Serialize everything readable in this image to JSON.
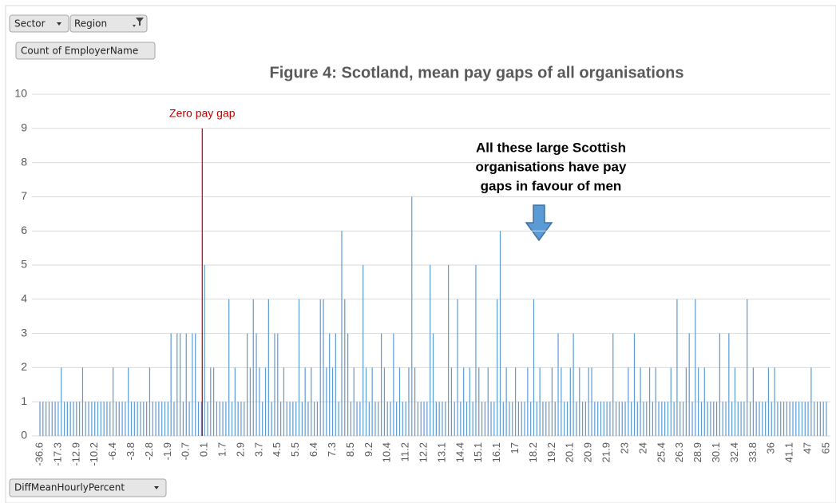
{
  "controls": {
    "filters": [
      "Sector",
      "Region"
    ],
    "values_field": "Count of EmployerName",
    "axis_field": "DiffMeanHourlyPercent"
  },
  "chart_data": {
    "type": "bar",
    "title": "Figure 4: Scotland, mean pay gaps of all organisations",
    "annotation": [
      "All these large Scottish",
      "organisations have pay",
      "gaps in favour of men"
    ],
    "reference_line": {
      "value": 0,
      "label": "Zero pay gap",
      "color": "#c00000"
    },
    "color": "#5b9bd5",
    "ylim": [
      0,
      10
    ],
    "yticks": [
      0,
      1,
      2,
      3,
      4,
      5,
      6,
      7,
      8,
      9,
      10
    ],
    "grid": true,
    "categories": [
      "-36.6",
      null,
      null,
      null,
      null,
      null,
      "-17.3",
      null,
      null,
      null,
      null,
      null,
      "-12.9",
      null,
      null,
      null,
      null,
      null,
      "-10.2",
      null,
      null,
      null,
      null,
      null,
      "-6.4",
      null,
      null,
      null,
      null,
      null,
      "-3.8",
      null,
      null,
      null,
      null,
      null,
      "-2.8",
      null,
      null,
      null,
      null,
      null,
      "-1.9",
      null,
      null,
      null,
      null,
      null,
      "-0.7",
      null,
      null,
      null,
      null,
      null,
      "0.1",
      null,
      null,
      null,
      null,
      null,
      "1.7",
      null,
      null,
      null,
      null,
      null,
      "2.9",
      null,
      null,
      null,
      null,
      null,
      "3.7",
      null,
      null,
      null,
      null,
      null,
      "4.5",
      null,
      null,
      null,
      null,
      null,
      "5.5",
      null,
      null,
      null,
      null,
      null,
      "6.4",
      null,
      null,
      null,
      null,
      null,
      "7.3",
      null,
      null,
      null,
      null,
      null,
      "8.5",
      null,
      null,
      null,
      null,
      null,
      "9.2",
      null,
      null,
      null,
      null,
      null,
      "10.4",
      null,
      null,
      null,
      null,
      null,
      "11.2",
      null,
      null,
      null,
      null,
      null,
      "12.2",
      null,
      null,
      null,
      null,
      null,
      "13.1",
      null,
      null,
      null,
      null,
      null,
      "14.4",
      null,
      null,
      null,
      null,
      null,
      "15.1",
      null,
      null,
      null,
      null,
      null,
      "16.1",
      null,
      null,
      null,
      null,
      null,
      "17",
      null,
      null,
      null,
      null,
      null,
      "18.2",
      null,
      null,
      null,
      null,
      null,
      "19.2",
      null,
      null,
      null,
      null,
      null,
      "20.1",
      null,
      null,
      null,
      null,
      null,
      "20.9",
      null,
      null,
      null,
      null,
      null,
      "21.9",
      null,
      null,
      null,
      null,
      null,
      "23",
      null,
      null,
      null,
      null,
      null,
      "24",
      null,
      null,
      null,
      null,
      null,
      "25.4",
      null,
      null,
      null,
      null,
      null,
      "26.3",
      null,
      null,
      null,
      null,
      null,
      "28.9",
      null,
      null,
      null,
      null,
      null,
      "30.1",
      null,
      null,
      null,
      null,
      null,
      "32.4",
      null,
      null,
      null,
      null,
      null,
      "33.8",
      null,
      null,
      null,
      null,
      null,
      "36",
      null,
      null,
      null,
      null,
      null,
      "41.1",
      null,
      null,
      null,
      null,
      null,
      "47",
      null,
      null,
      null,
      null,
      null,
      "65"
    ],
    "values": [
      1,
      1,
      1,
      1,
      1,
      1,
      1,
      2,
      1,
      1,
      1,
      1,
      1,
      1,
      2,
      1,
      1,
      1,
      1,
      1,
      1,
      1,
      1,
      1,
      2,
      1,
      1,
      1,
      1,
      2,
      1,
      1,
      1,
      1,
      1,
      1,
      2,
      1,
      1,
      1,
      1,
      1,
      1,
      3,
      1,
      3,
      3,
      1,
      3,
      1,
      3,
      3,
      1,
      1,
      5,
      1,
      2,
      2,
      1,
      1,
      1,
      1,
      4,
      1,
      2,
      1,
      1,
      1,
      3,
      2,
      4,
      3,
      2,
      1,
      2,
      4,
      1,
      3,
      3,
      1,
      2,
      1,
      1,
      1,
      1,
      4,
      1,
      2,
      1,
      2,
      1,
      1,
      4,
      4,
      2,
      3,
      2,
      3,
      1,
      6,
      4,
      3,
      1,
      2,
      1,
      1,
      5,
      2,
      1,
      2,
      1,
      1,
      3,
      2,
      1,
      1,
      3,
      1,
      2,
      1,
      1,
      2,
      7,
      2,
      1,
      1,
      1,
      1,
      5,
      3,
      1,
      1,
      1,
      1,
      5,
      2,
      1,
      4,
      1,
      2,
      1,
      2,
      1,
      5,
      2,
      1,
      1,
      2,
      1,
      1,
      4,
      6,
      1,
      2,
      1,
      1,
      2,
      1,
      1,
      1,
      2,
      1,
      4,
      1,
      2,
      1,
      1,
      1,
      2,
      1,
      3,
      2,
      1,
      1,
      2,
      3,
      1,
      2,
      1,
      1,
      2,
      2,
      1,
      1,
      1,
      1,
      1,
      1,
      3,
      1,
      1,
      1,
      1,
      2,
      1,
      3,
      1,
      2,
      1,
      1,
      2,
      1,
      2,
      1,
      1,
      1,
      1,
      2,
      1,
      4,
      1,
      1,
      2,
      3,
      1,
      4,
      2,
      1,
      2,
      1,
      1,
      1,
      1,
      3,
      1,
      1,
      3,
      1,
      2,
      1,
      1,
      1,
      4,
      1,
      2,
      1,
      1,
      1,
      1,
      2,
      1,
      2,
      1,
      1,
      1,
      1,
      1,
      1,
      1,
      1,
      1,
      1,
      1,
      2,
      1,
      1,
      1,
      1,
      1
    ]
  }
}
